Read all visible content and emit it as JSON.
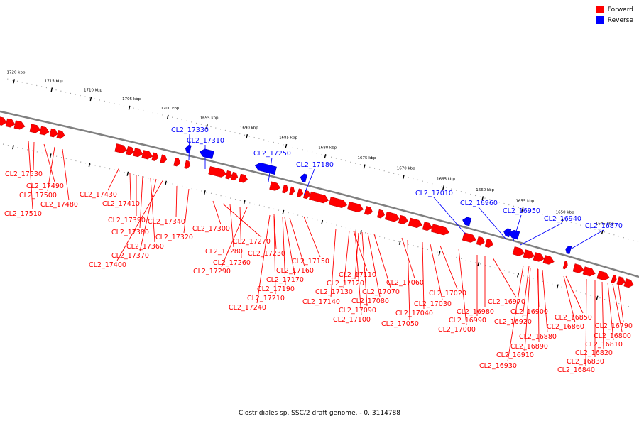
{
  "caption": "Clostridiales sp. SSC/2 draft genome. - 0..3114788",
  "legend": [
    {
      "label": "Forward",
      "color": "#ff0000"
    },
    {
      "label": "Reverse",
      "color": "#0000ff"
    }
  ],
  "colors": {
    "forward": "#ff0000",
    "reverse": "#0000ff",
    "axis": "#808080"
  },
  "scale": {
    "unit": "kbp",
    "ticks": [
      "1720 kbp",
      "1715 kbp",
      "1710 kbp",
      "1705 kbp",
      "1700 kbp",
      "1695 kbp",
      "1690 kbp",
      "1685 kbp",
      "1680 kbp",
      "1675 kbp",
      "1670 kbp",
      "1665 kbp",
      "1660 kbp",
      "1655 kbp",
      "1650 kbp",
      "1645 kbp"
    ]
  },
  "genes": {
    "reverse": [
      "CL2_17330",
      "CL2_17310",
      "CL2_17250",
      "CL2_17180",
      "CL2_17010",
      "CL2_16960",
      "CL2_16950",
      "CL2_16940",
      "CL2_16870"
    ],
    "forward": [
      "CL2_17530",
      "CL2_17490",
      "CL2_17500",
      "CL2_17480",
      "CL2_17510",
      "CL2_17430",
      "CL2_17410",
      "CL2_17390",
      "CL2_17380",
      "CL2_17360",
      "CL2_17370",
      "CL2_17400",
      "CL2_17340",
      "CL2_17320",
      "CL2_17300",
      "CL2_17270",
      "CL2_17280",
      "CL2_17260",
      "CL2_17290",
      "CL2_17230",
      "CL2_17150",
      "CL2_17160",
      "CL2_17170",
      "CL2_17190",
      "CL2_17210",
      "CL2_17240",
      "CL2_17110",
      "CL2_17120",
      "CL2_17130",
      "CL2_17140",
      "CL2_17070",
      "CL2_17080",
      "CL2_17090",
      "CL2_17100",
      "CL2_17060",
      "CL2_17040",
      "CL2_17050",
      "CL2_17020",
      "CL2_17030",
      "CL2_17000",
      "CL2_16970",
      "CL2_16980",
      "CL2_16990",
      "CL2_16900",
      "CL2_16920",
      "CL2_16880",
      "CL2_16890",
      "CL2_16910",
      "CL2_16930",
      "CL2_16850",
      "CL2_16860",
      "CL2_16790",
      "CL2_16800",
      "CL2_16810",
      "CL2_16820",
      "CL2_16830",
      "CL2_16840"
    ]
  }
}
